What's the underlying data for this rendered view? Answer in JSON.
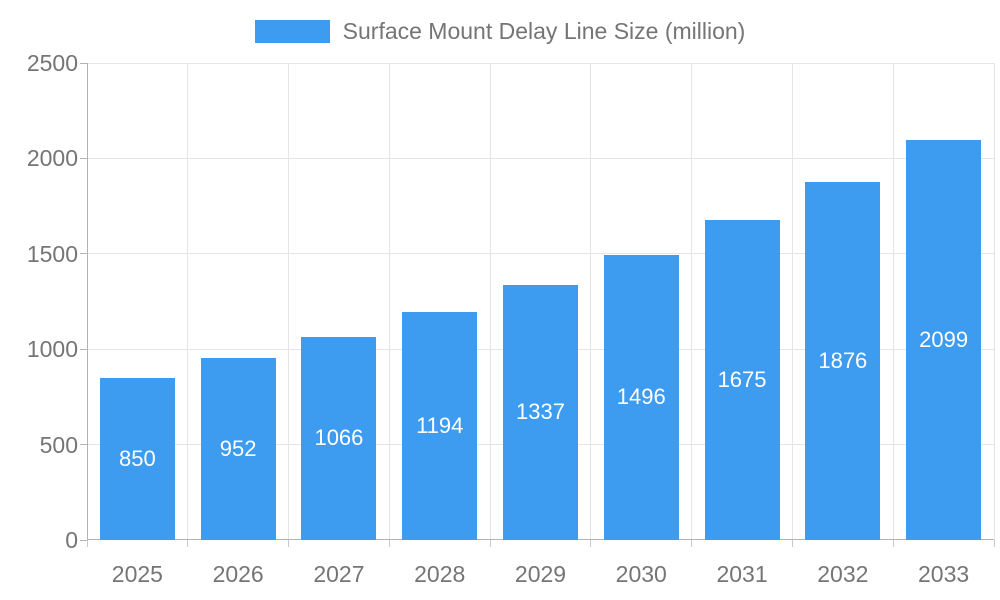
{
  "legend": {
    "label": "Surface Mount Delay Line Size (million)"
  },
  "colors": {
    "bar": "#3d9bf0",
    "grid": "#e5e5e5",
    "axis": "#b3b3b3",
    "text": "#757575",
    "bar_label": "#ffffff",
    "background": "#ffffff"
  },
  "chart_data": {
    "type": "bar",
    "title": "Surface Mount Delay Line Size (million)",
    "categories": [
      "2025",
      "2026",
      "2027",
      "2028",
      "2029",
      "2030",
      "2031",
      "2032",
      "2033"
    ],
    "values": [
      850,
      952,
      1066,
      1194,
      1337,
      1496,
      1675,
      1876,
      2099
    ],
    "xlabel": "",
    "ylabel": "",
    "ylim": [
      0,
      2500
    ],
    "yticks": [
      0,
      500,
      1000,
      1500,
      2000,
      2500
    ],
    "grid": true,
    "legend_position": "top-center",
    "value_label_position": "inside-center"
  }
}
